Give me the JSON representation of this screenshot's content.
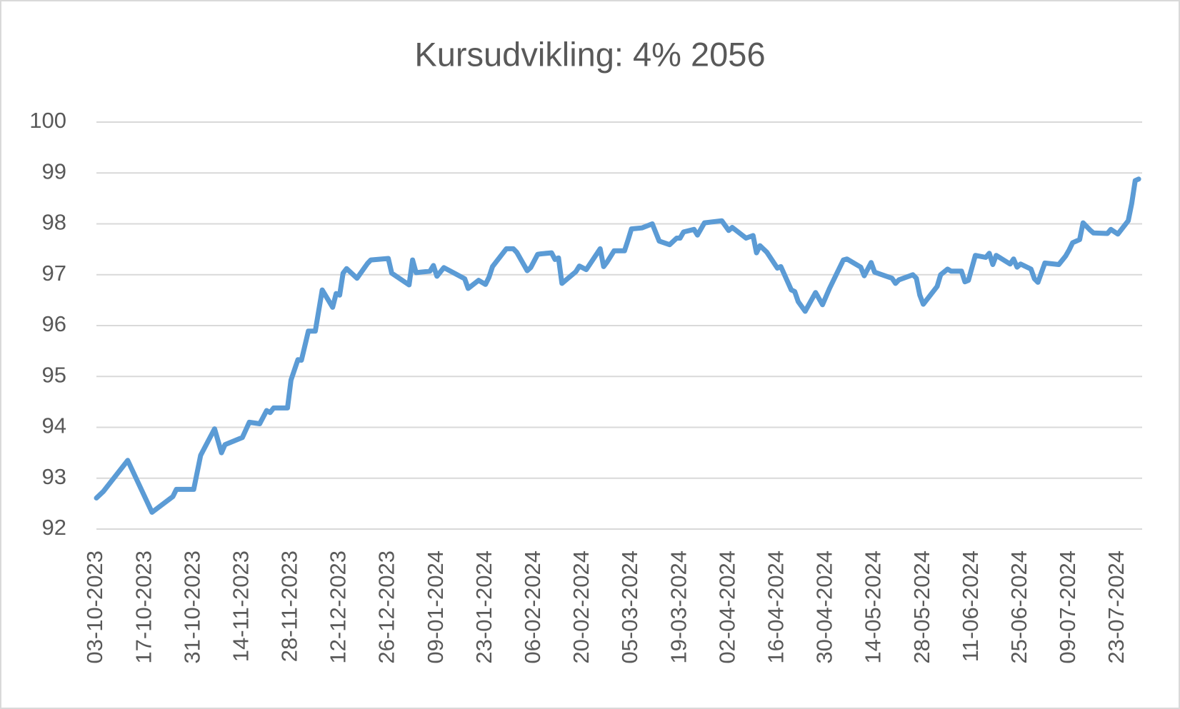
{
  "chart_data": {
    "type": "line",
    "title": "Kursudvikling: 4% 2056",
    "x": [
      "03-10-2023",
      "05-10-2023",
      "12-10-2023",
      "19-10-2023",
      "25-10-2023",
      "26-10-2023",
      "31-10-2023",
      "02-11-2023",
      "06-11-2023",
      "08-11-2023",
      "09-11-2023",
      "14-11-2023",
      "16-11-2023",
      "19-11-2023",
      "21-11-2023",
      "22-11-2023",
      "23-11-2023",
      "27-11-2023",
      "28-11-2023",
      "30-11-2023",
      "01-12-2023",
      "03-12-2023",
      "05-12-2023",
      "07-12-2023",
      "10-12-2023",
      "11-12-2023",
      "12-12-2023",
      "13-12-2023",
      "14-12-2023",
      "17-12-2023",
      "20-12-2023",
      "21-12-2023",
      "26-12-2023",
      "27-12-2023",
      "01-01-2024",
      "02-01-2024",
      "03-01-2024",
      "07-01-2024",
      "08-01-2024",
      "09-01-2024",
      "11-01-2024",
      "14-01-2024",
      "17-01-2024",
      "18-01-2024",
      "21-01-2024",
      "23-01-2024",
      "24-01-2024",
      "25-01-2024",
      "29-01-2024",
      "31-01-2024",
      "01-02-2024",
      "04-02-2024",
      "05-02-2024",
      "07-02-2024",
      "08-02-2024",
      "11-02-2024",
      "12-02-2024",
      "13-02-2024",
      "14-02-2024",
      "18-02-2024",
      "19-02-2024",
      "21-02-2024",
      "25-02-2024",
      "26-02-2024",
      "27-02-2024",
      "29-02-2024",
      "03-03-2024",
      "04-03-2024",
      "05-03-2024",
      "08-03-2024",
      "11-03-2024",
      "13-03-2024",
      "16-03-2024",
      "18-03-2024",
      "19-03-2024",
      "20-03-2024",
      "23-03-2024",
      "24-03-2024",
      "26-03-2024",
      "31-03-2024",
      "02-04-2024",
      "03-04-2024",
      "07-04-2024",
      "09-04-2024",
      "10-04-2024",
      "11-04-2024",
      "13-04-2024",
      "16-04-2024",
      "17-04-2024",
      "20-04-2024",
      "21-04-2024",
      "22-04-2024",
      "24-04-2024",
      "27-04-2024",
      "29-04-2024",
      "01-05-2024",
      "05-05-2024",
      "06-05-2024",
      "10-05-2024",
      "11-05-2024",
      "13-05-2024",
      "14-05-2024",
      "19-05-2024",
      "20-05-2024",
      "21-05-2024",
      "25-05-2024",
      "26-05-2024",
      "27-05-2024",
      "28-05-2024",
      "01-06-2024",
      "02-06-2024",
      "04-06-2024",
      "05-06-2024",
      "08-06-2024",
      "09-06-2024",
      "10-06-2024",
      "12-06-2024",
      "15-06-2024",
      "16-06-2024",
      "17-06-2024",
      "18-06-2024",
      "22-06-2024",
      "23-06-2024",
      "24-06-2024",
      "25-06-2024",
      "28-06-2024",
      "29-06-2024",
      "30-06-2024",
      "02-07-2024",
      "06-07-2024",
      "08-07-2024",
      "09-07-2024",
      "10-07-2024",
      "12-07-2024",
      "13-07-2024",
      "15-07-2024",
      "16-07-2024",
      "20-07-2024",
      "21-07-2024",
      "23-07-2024",
      "26-07-2024",
      "27-07-2024",
      "28-07-2024",
      "29-07-2024"
    ],
    "values": [
      92.61,
      92.74,
      93.35,
      92.33,
      92.64,
      92.78,
      92.78,
      93.45,
      93.97,
      93.5,
      93.66,
      93.8,
      94.1,
      94.07,
      94.33,
      94.29,
      94.38,
      94.38,
      94.93,
      95.33,
      95.32,
      95.89,
      95.89,
      96.7,
      96.36,
      96.63,
      96.6,
      97.03,
      97.12,
      96.93,
      97.22,
      97.29,
      97.32,
      97.03,
      96.8,
      97.29,
      97.04,
      97.07,
      97.18,
      96.97,
      97.14,
      97.03,
      96.92,
      96.73,
      96.89,
      96.81,
      96.95,
      97.16,
      97.51,
      97.51,
      97.44,
      97.08,
      97.14,
      97.4,
      97.41,
      97.43,
      97.3,
      97.33,
      96.83,
      97.06,
      97.17,
      97.1,
      97.51,
      97.16,
      97.25,
      97.47,
      97.47,
      97.68,
      97.9,
      97.92,
      98.0,
      97.66,
      97.59,
      97.72,
      97.72,
      97.84,
      97.89,
      97.78,
      98.02,
      98.06,
      97.87,
      97.93,
      97.72,
      97.77,
      97.43,
      97.57,
      97.44,
      97.13,
      97.16,
      96.7,
      96.67,
      96.47,
      96.28,
      96.65,
      96.41,
      96.73,
      97.29,
      97.31,
      97.15,
      96.98,
      97.24,
      97.05,
      96.93,
      96.83,
      96.9,
      97.0,
      96.93,
      96.6,
      96.42,
      96.77,
      97.0,
      97.11,
      97.07,
      97.07,
      96.86,
      96.89,
      97.38,
      97.34,
      97.42,
      97.2,
      97.38,
      97.21,
      97.31,
      97.15,
      97.21,
      97.11,
      96.92,
      96.85,
      97.23,
      97.2,
      97.37,
      97.49,
      97.63,
      97.69,
      98.02,
      97.88,
      97.82,
      97.81,
      97.89,
      97.8,
      98.06,
      98.4,
      98.85,
      98.88
    ],
    "color": "#5b9bd5",
    "xlim": [
      "03-10-2023",
      "30-07-2024"
    ],
    "xticks": [
      "03-10-2023",
      "17-10-2023",
      "31-10-2023",
      "14-11-2023",
      "28-11-2023",
      "12-12-2023",
      "26-12-2023",
      "09-01-2024",
      "23-01-2024",
      "06-02-2024",
      "20-02-2024",
      "05-03-2024",
      "19-03-2024",
      "02-04-2024",
      "16-04-2024",
      "30-04-2024",
      "14-05-2024",
      "28-05-2024",
      "11-06-2024",
      "25-06-2024",
      "09-07-2024",
      "23-07-2024"
    ],
    "ylim": [
      92,
      100
    ],
    "yticks": [
      92,
      93,
      94,
      95,
      96,
      97,
      98,
      99,
      100
    ],
    "grid": true
  }
}
